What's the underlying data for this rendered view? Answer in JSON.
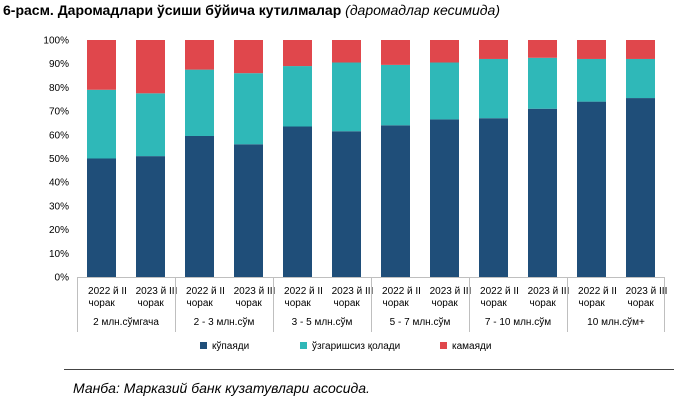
{
  "header": {
    "title": "6-расм. Даромадлари ўсиши бўйича кутилмалар",
    "subtitle": "(даромадлар кесимида)"
  },
  "chart_data": {
    "type": "bar",
    "stacked": true,
    "ylim": [
      0,
      100
    ],
    "yticks": [
      "0%",
      "10%",
      "20%",
      "30%",
      "40%",
      "50%",
      "60%",
      "70%",
      "80%",
      "90%",
      "100%"
    ],
    "grid": false,
    "legend_position": "bottom",
    "groups": [
      {
        "label": "2 млн.сўмгача",
        "bars": [
          {
            "line1": "2022 й II",
            "line2": "чорак"
          },
          {
            "line1": "2023 й III",
            "line2": "чорак"
          }
        ]
      },
      {
        "label": "2 - 3 млн.сўм",
        "bars": [
          {
            "line1": "2022 й II",
            "line2": "чорак"
          },
          {
            "line1": "2023 й III",
            "line2": "чорак"
          }
        ]
      },
      {
        "label": "3 - 5 млн.сўм",
        "bars": [
          {
            "line1": "2022 й II",
            "line2": "чорак"
          },
          {
            "line1": "2023 й III",
            "line2": "чорак"
          }
        ]
      },
      {
        "label": "5 - 7 млн.сўм",
        "bars": [
          {
            "line1": "2022 й II",
            "line2": "чорак"
          },
          {
            "line1": "2023 й III",
            "line2": "чорак"
          }
        ]
      },
      {
        "label": "7 - 10 млн.сўм",
        "bars": [
          {
            "line1": "2022 й II",
            "line2": "чорак"
          },
          {
            "line1": "2023 й III",
            "line2": "чорак"
          }
        ]
      },
      {
        "label": "10 млн.сўм+",
        "bars": [
          {
            "line1": "2022 й II",
            "line2": "чорак"
          },
          {
            "line1": "2023 й III",
            "line2": "чорак"
          }
        ]
      }
    ],
    "series": [
      {
        "name": "кўпаяди",
        "color": "#1f4e79",
        "values": [
          50,
          51,
          59.5,
          56,
          63.5,
          61.5,
          64,
          66.5,
          67,
          71,
          74,
          75.5
        ]
      },
      {
        "name": "ўзгаришсиз қолади",
        "color": "#2fb8b8",
        "values": [
          29,
          26.5,
          28,
          30,
          25.5,
          29,
          25.5,
          24,
          25,
          21.5,
          18,
          16.5
        ]
      },
      {
        "name": "камаяди",
        "color": "#e0474c",
        "values": [
          21,
          22.5,
          12.5,
          14,
          11,
          9.5,
          10.5,
          9.5,
          8,
          7.5,
          8,
          8
        ]
      }
    ]
  },
  "footer": {
    "source": "Манба: Марказий банк кузатувлари асосида."
  }
}
